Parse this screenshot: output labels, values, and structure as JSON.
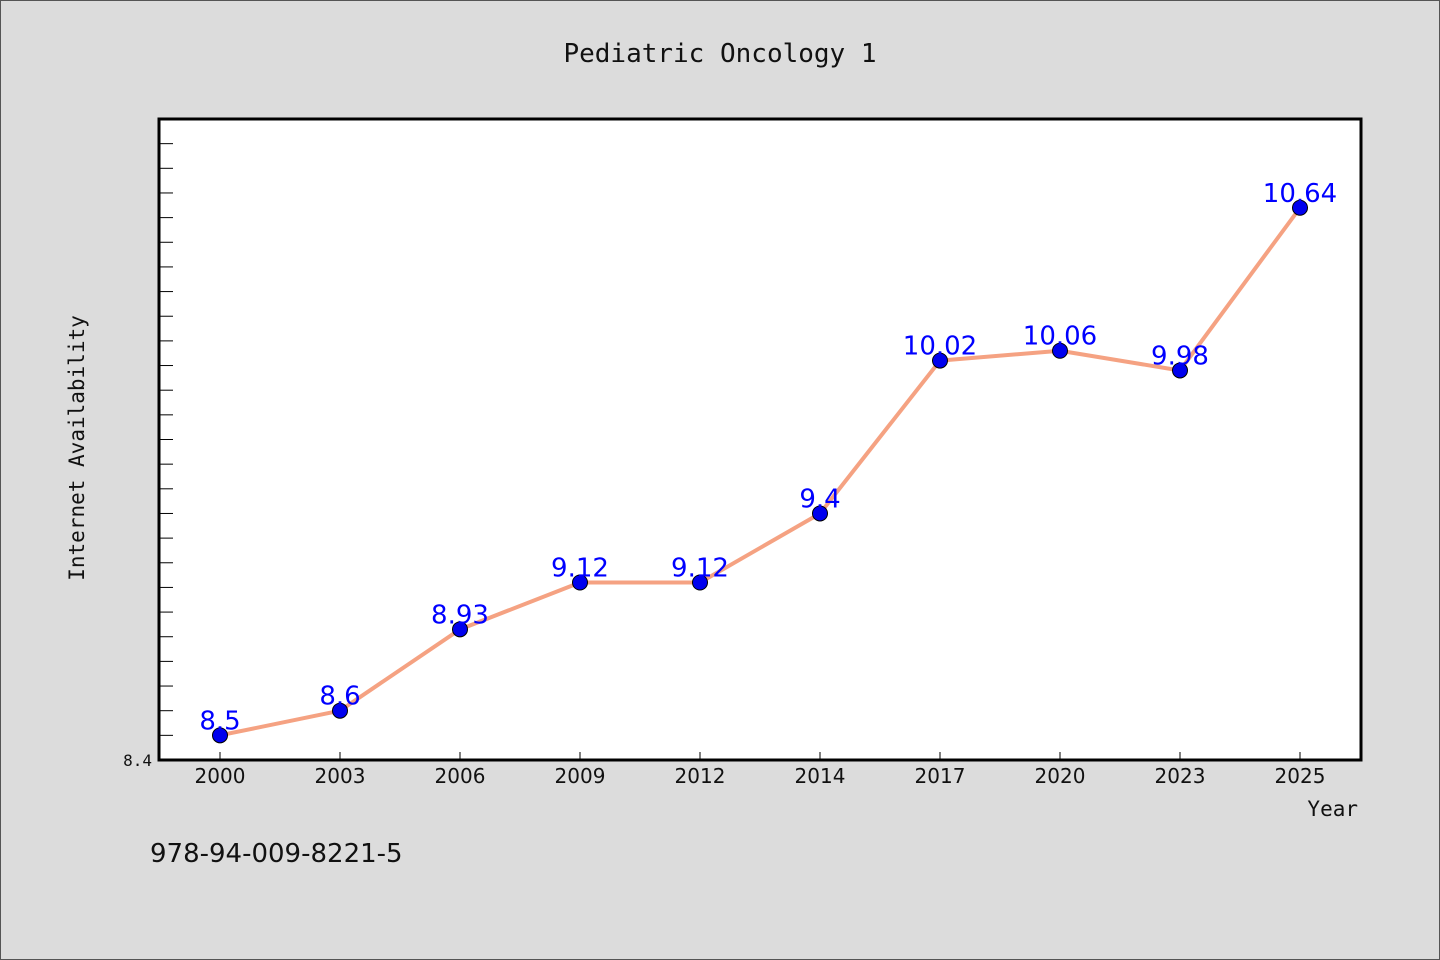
{
  "chart_data": {
    "type": "line",
    "title": "Pediatric Oncology 1",
    "xlabel": "Year",
    "ylabel": "Internet Availability",
    "categories": [
      "2000",
      "2003",
      "2006",
      "2009",
      "2012",
      "2014",
      "2017",
      "2020",
      "2023",
      "2025"
    ],
    "series": [
      {
        "values": [
          8.5,
          8.6,
          8.93,
          9.12,
          9.12,
          9.4,
          10.02,
          10.06,
          9.98,
          10.64
        ]
      }
    ],
    "data_labels": [
      "8.5",
      "8.6",
      "8.93",
      "9.12",
      "9.12",
      "9.4",
      "10.02",
      "10.06",
      "9.98",
      "10.64"
    ],
    "ylim": [
      8.4,
      11.0
    ],
    "yticks_labeled": [
      "8.4"
    ],
    "minor_tick_step": 0.1,
    "grid": false,
    "legend": "none",
    "colors": {
      "line": "#f5a282",
      "marker": "#0000ee",
      "data_label": "#0000ff",
      "background": "#dcdcdc",
      "plot_background": "#ffffff"
    }
  },
  "footer": {
    "isbn": "978-94-009-8221-5"
  }
}
